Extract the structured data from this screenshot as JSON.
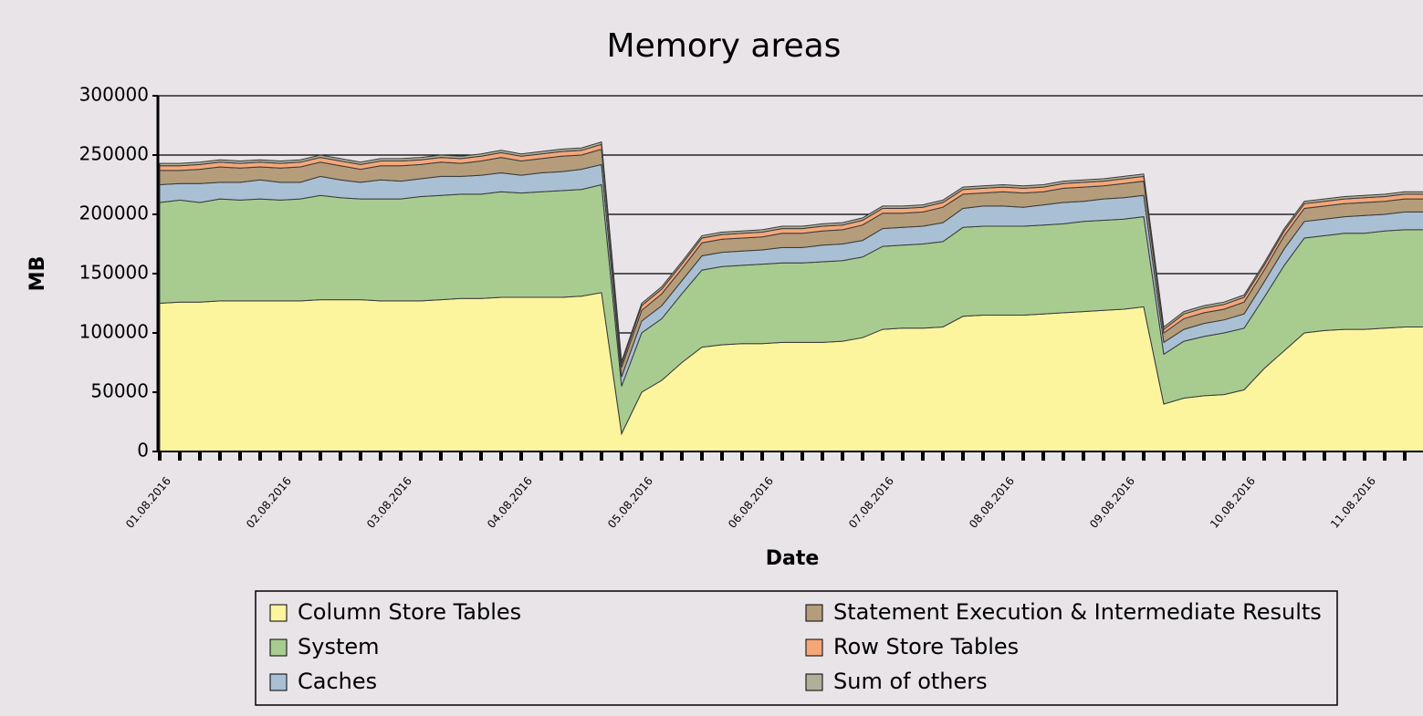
{
  "chart_data": {
    "type": "stacked_area",
    "title": "Memory areas",
    "y_label": "MB",
    "x_label": "Date",
    "categories": [
      "01.08.2016",
      null,
      null,
      null,
      null,
      null,
      "02.08.2016",
      null,
      null,
      null,
      null,
      null,
      "03.08.2016",
      null,
      null,
      null,
      null,
      null,
      "04.08.2016",
      null,
      null,
      null,
      null,
      null,
      "05.08.2016",
      null,
      null,
      null,
      null,
      null,
      "06.08.2016",
      null,
      null,
      null,
      null,
      null,
      "07.08.2016",
      null,
      null,
      null,
      null,
      null,
      "08.08.2016",
      null,
      null,
      null,
      null,
      null,
      "09.08.2016",
      null,
      null,
      null,
      null,
      null,
      "10.08.2016",
      null,
      null,
      null,
      null,
      null,
      "11.08.2016",
      null,
      null,
      null
    ],
    "ylim": [
      0,
      300000
    ],
    "yticks": [
      0,
      50000,
      100000,
      150000,
      200000,
      250000,
      300000
    ],
    "grid": true,
    "legend": "bottom",
    "series": [
      {
        "name": "Column Store Tables",
        "color": "#fdf59e",
        "values": [
          125000,
          126000,
          126000,
          127000,
          127000,
          127000,
          127000,
          127000,
          128000,
          128000,
          128000,
          127000,
          127000,
          127000,
          128000,
          129000,
          129000,
          130000,
          130000,
          130000,
          130000,
          131000,
          134000,
          15000,
          50000,
          60000,
          75000,
          88000,
          90000,
          91000,
          91000,
          92000,
          92000,
          92000,
          93000,
          96000,
          103000,
          104000,
          104000,
          105000,
          114000,
          115000,
          115000,
          115000,
          116000,
          117000,
          118000,
          119000,
          120000,
          122000,
          40000,
          45000,
          47000,
          48000,
          52000,
          70000,
          85000,
          100000,
          102000,
          103000,
          103000,
          104000,
          105000,
          105000
        ]
      },
      {
        "name": "System",
        "color": "#a8cc90",
        "values": [
          85000,
          86000,
          84000,
          86000,
          85000,
          86000,
          85000,
          86000,
          88000,
          86000,
          85000,
          86000,
          86000,
          88000,
          88000,
          88000,
          88000,
          89000,
          88000,
          89000,
          90000,
          90000,
          91000,
          40000,
          50000,
          52000,
          58000,
          65000,
          66000,
          66000,
          67000,
          67000,
          67000,
          68000,
          68000,
          68000,
          70000,
          70000,
          71000,
          72000,
          75000,
          75000,
          75000,
          75000,
          75000,
          75000,
          76000,
          76000,
          76000,
          76000,
          42000,
          48000,
          50000,
          52000,
          52000,
          60000,
          72000,
          80000,
          80000,
          81000,
          81000,
          82000,
          82000,
          82000
        ]
      },
      {
        "name": "Caches",
        "color": "#a9c0d4",
        "values": [
          15000,
          14000,
          16000,
          14000,
          15000,
          16000,
          15000,
          14000,
          16000,
          15000,
          14000,
          16000,
          15000,
          15000,
          16000,
          15000,
          16000,
          16000,
          15000,
          16000,
          16000,
          17000,
          17000,
          8000,
          10000,
          11000,
          11000,
          12000,
          12000,
          12000,
          12000,
          13000,
          13000,
          14000,
          14000,
          14000,
          15000,
          15000,
          15000,
          16000,
          16000,
          17000,
          17000,
          16000,
          17000,
          18000,
          17000,
          18000,
          18000,
          18000,
          10000,
          10000,
          11000,
          11000,
          12000,
          13000,
          14000,
          14000,
          14000,
          14000,
          15000,
          14000,
          15000,
          15000
        ]
      },
      {
        "name": "Statement Execution & Intermediate Results",
        "color": "#b59d7b",
        "values": [
          12000,
          11000,
          12000,
          13000,
          12000,
          11000,
          12000,
          13000,
          12000,
          12000,
          11000,
          12000,
          13000,
          12000,
          12000,
          11000,
          12000,
          13000,
          12000,
          12000,
          13000,
          12000,
          13000,
          8000,
          9000,
          10000,
          10000,
          11000,
          11000,
          11000,
          11000,
          12000,
          12000,
          12000,
          12000,
          13000,
          13000,
          12000,
          12000,
          13000,
          12000,
          11000,
          12000,
          12000,
          11000,
          12000,
          12000,
          11000,
          12000,
          12000,
          8000,
          9000,
          9000,
          9000,
          10000,
          10000,
          11000,
          11000,
          11000,
          11000,
          11000,
          11000,
          11000,
          11000
        ]
      },
      {
        "name": "Row Store Tables",
        "color": "#f5a77a",
        "values": [
          4000,
          4000,
          4000,
          4000,
          4000,
          4000,
          4000,
          4000,
          4000,
          4000,
          4000,
          4000,
          4000,
          4000,
          4000,
          4000,
          4000,
          4000,
          4000,
          4000,
          4000,
          4000,
          4000,
          3000,
          4000,
          4000,
          4000,
          4000,
          4000,
          4000,
          4000,
          4000,
          4000,
          4000,
          4000,
          4000,
          4000,
          4000,
          4000,
          4000,
          4000,
          4000,
          4000,
          4000,
          4000,
          4000,
          4000,
          4000,
          4000,
          4000,
          3000,
          4000,
          4000,
          4000,
          4000,
          4000,
          4000,
          4000,
          4000,
          4000,
          4000,
          4000,
          4000,
          4000
        ]
      },
      {
        "name": "Sum of others",
        "color": "#b0b09a",
        "values": [
          2000,
          2000,
          2000,
          2000,
          2000,
          2000,
          2000,
          2000,
          2000,
          2000,
          2000,
          2000,
          2000,
          2000,
          2000,
          2000,
          2000,
          2000,
          2000,
          2000,
          2000,
          2000,
          2000,
          2000,
          2000,
          2000,
          2000,
          2000,
          2000,
          2000,
          2000,
          2000,
          2000,
          2000,
          2000,
          2000,
          2000,
          2000,
          2000,
          2000,
          2000,
          2000,
          2000,
          2000,
          2000,
          2000,
          2000,
          2000,
          2000,
          2000,
          2000,
          2000,
          2000,
          2000,
          2000,
          2000,
          2000,
          2000,
          2000,
          2000,
          2000,
          2000,
          2000,
          2000
        ]
      }
    ]
  }
}
